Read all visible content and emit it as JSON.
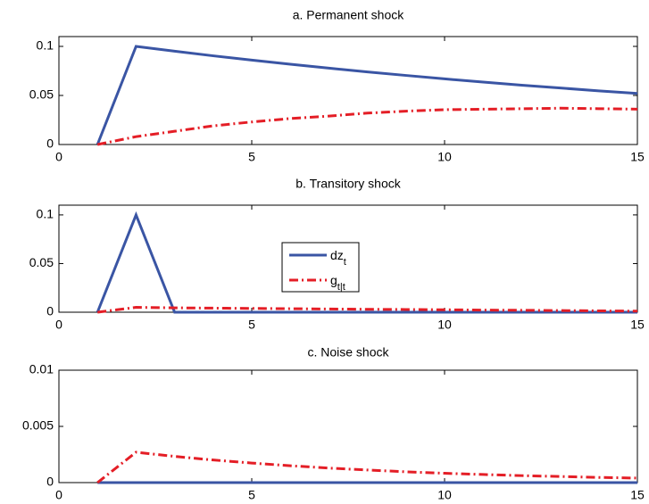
{
  "chart_data": [
    {
      "type": "line",
      "title": "a. Permanent shock",
      "x": [
        1,
        2,
        3,
        4,
        5,
        6,
        7,
        8,
        9,
        10,
        11,
        12,
        13,
        14,
        15
      ],
      "xlim": [
        0,
        15
      ],
      "xticks": [
        0,
        5,
        10,
        15
      ],
      "ylim": [
        0,
        0.11
      ],
      "yticks": [
        0,
        0.05,
        0.1
      ],
      "series": [
        {
          "color": "#3a55a4",
          "line_style": "solid",
          "values": [
            0,
            0.1,
            0.0951,
            0.0904,
            0.086,
            0.0818,
            0.0778,
            0.074,
            0.0704,
            0.0669,
            0.0636,
            0.0605,
            0.0576,
            0.0547,
            0.052
          ]
        },
        {
          "color": "#e41e26",
          "line_style": "dash-dot",
          "values": [
            0,
            0.008,
            0.0135,
            0.019,
            0.023,
            0.0265,
            0.029,
            0.032,
            0.034,
            0.0355,
            0.036,
            0.0365,
            0.037,
            0.0365,
            0.036
          ]
        }
      ]
    },
    {
      "type": "line",
      "title": "b. Transitory shock",
      "x": [
        1,
        2,
        3,
        4,
        5,
        6,
        7,
        8,
        9,
        10,
        11,
        12,
        13,
        14,
        15
      ],
      "xlim": [
        0,
        15
      ],
      "xticks": [
        0,
        5,
        10,
        15
      ],
      "ylim": [
        0,
        0.11
      ],
      "yticks": [
        0,
        0.05,
        0.1
      ],
      "legend": true,
      "series": [
        {
          "name": "dz",
          "subscript": "t",
          "color": "#3a55a4",
          "line_style": "solid",
          "values": [
            0,
            0.1,
            0,
            0,
            0,
            0,
            0,
            0,
            0,
            0,
            0,
            0,
            0,
            0,
            0
          ]
        },
        {
          "name": "g",
          "subscript": "t|t",
          "color": "#e41e26",
          "line_style": "dash-dot",
          "values": [
            0,
            0.005,
            0.0045,
            0.0042,
            0.0039,
            0.0036,
            0.0033,
            0.003,
            0.0028,
            0.0025,
            0.0022,
            0.002,
            0.0017,
            0.0014,
            0.0011
          ]
        }
      ]
    },
    {
      "type": "line",
      "title": "c. Noise shock",
      "x": [
        1,
        2,
        3,
        4,
        5,
        6,
        7,
        8,
        9,
        10,
        11,
        12,
        13,
        14,
        15
      ],
      "xlim": [
        0,
        15
      ],
      "xticks": [
        0,
        5,
        10,
        15
      ],
      "ylim": [
        0,
        0.01
      ],
      "yticks": [
        0,
        0.005,
        0.01
      ],
      "series": [
        {
          "color": "#3a55a4",
          "line_style": "solid",
          "values": [
            0,
            0,
            0,
            0,
            0,
            0,
            0,
            0,
            0,
            0,
            0,
            0,
            0,
            0,
            0
          ]
        },
        {
          "color": "#e41e26",
          "line_style": "dash-dot",
          "values": [
            0,
            0.0027,
            0.00233,
            0.00201,
            0.00174,
            0.0015,
            0.00129,
            0.00112,
            0.00096,
            0.00083,
            0.00072,
            0.00062,
            0.00054,
            0.00046,
            0.0004
          ]
        }
      ]
    }
  ]
}
